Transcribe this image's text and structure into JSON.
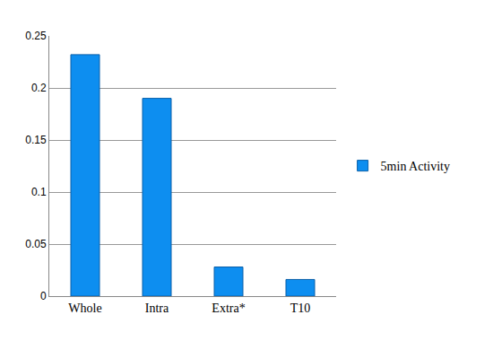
{
  "chart_data": {
    "type": "bar",
    "categories": [
      "Whole",
      "Intra",
      "Extra*",
      "T10"
    ],
    "series": [
      {
        "name": "5min Activity",
        "color": "#0d8ef0",
        "values": [
          0.232,
          0.19,
          0.028,
          0.016
        ]
      }
    ],
    "ylim": [
      0,
      0.25
    ],
    "yticks": [
      0,
      0.05,
      0.1,
      0.15,
      0.2,
      0.25
    ],
    "grid": true,
    "legend": "right"
  }
}
